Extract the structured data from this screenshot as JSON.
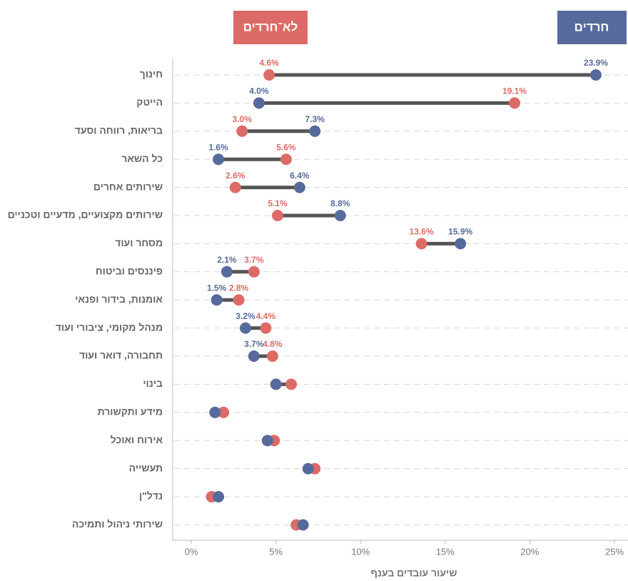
{
  "chart_data": {
    "type": "dumbbell",
    "x_label": "שיעור עובדים בענף",
    "categories": [
      "חינוך",
      "הייטק",
      "בריאות, רווחה וסעד",
      "כל השאר",
      "שירותים אחרים",
      "שירותים מקצועיים, מדעיים וטכניים",
      "מסחר ועוד",
      "פיננסים וביטוח",
      "אומנות, בידור ופנאי",
      "מנהל מקומי, ציבורי ועוד",
      "תחבורה, דואר ועוד",
      "בינוי",
      "מידע ותקשורת",
      "אירוח ואוכל",
      "תעשייה",
      "נדל\"ן",
      "שירותי ניהול ותמיכה"
    ],
    "series": [
      {
        "name": "חרדים",
        "color": "#566b9b",
        "values": [
          23.9,
          4.0,
          7.3,
          1.6,
          6.4,
          8.8,
          15.9,
          2.1,
          1.5,
          3.2,
          3.7,
          5.0,
          1.4,
          4.5,
          6.9,
          1.6,
          6.6
        ],
        "value_labels": [
          "23.9%",
          "4.0%",
          "7.3%",
          "1.6%",
          "6.4%",
          "8.8%",
          "15.9%",
          "2.1%",
          "1.5%",
          "3.2%",
          "3.7%",
          null,
          null,
          null,
          null,
          null,
          null
        ]
      },
      {
        "name": "לא־חרדים",
        "color": "#dc6b67",
        "values": [
          4.6,
          19.1,
          3.0,
          5.6,
          2.6,
          5.1,
          13.6,
          3.7,
          2.8,
          4.4,
          4.8,
          5.9,
          1.9,
          4.9,
          7.3,
          1.2,
          6.2
        ],
        "value_labels": [
          "4.6%",
          "19.1%",
          "3.0%",
          "5.6%",
          "2.6%",
          "5.1%",
          "13.6%",
          "3.7%",
          "2.8%",
          "4.4%",
          "4.8%",
          null,
          null,
          null,
          null,
          null,
          null
        ]
      }
    ],
    "xlim": [
      -1.1,
      25.8
    ],
    "xticks": [
      {
        "value": 0,
        "label": "0%"
      },
      {
        "value": 5,
        "label": "5%"
      },
      {
        "value": 10,
        "label": "10%"
      },
      {
        "value": 15,
        "label": "15%"
      },
      {
        "value": 20,
        "label": "20%"
      },
      {
        "value": 25,
        "label": "25%"
      }
    ]
  }
}
